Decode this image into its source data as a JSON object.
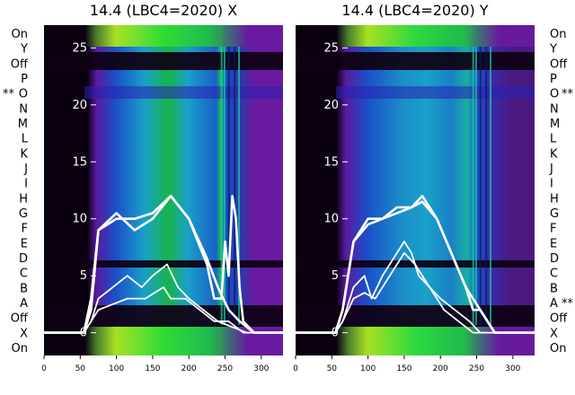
{
  "chart_data": [
    {
      "type": "heatmap",
      "title": "14.4 (LBC4=2020) X",
      "x_range": [
        0,
        330
      ],
      "x_ticks": [
        0,
        50,
        100,
        150,
        200,
        250,
        300
      ],
      "y_range": [
        -2,
        27
      ],
      "y_ticks": [
        0,
        5,
        10,
        15,
        20,
        25
      ],
      "row_labels": [
        "On",
        "Y",
        "Off",
        "P",
        "O",
        "N",
        "M",
        "L",
        "K",
        "J",
        "I",
        "H",
        "G",
        "F",
        "E",
        "D",
        "C",
        "B",
        "A",
        "Off",
        "X",
        "On"
      ],
      "row_markers": [
        {
          "row": "O",
          "marker": "**"
        }
      ],
      "series": [
        {
          "x": [
            0,
            55,
            65,
            75,
            100,
            125,
            150,
            175,
            200,
            225,
            235,
            245,
            250,
            255,
            260,
            265,
            270,
            275,
            290,
            330
          ],
          "y": [
            0,
            0,
            3,
            9,
            10.5,
            9,
            10,
            12,
            10,
            6,
            3,
            3,
            8,
            5,
            12,
            10,
            4,
            1,
            0,
            0
          ]
        },
        {
          "x": [
            0,
            55,
            65,
            75,
            100,
            125,
            150,
            175,
            200,
            225,
            240,
            255,
            270,
            290,
            330
          ],
          "y": [
            0,
            0,
            2,
            9,
            10,
            10,
            10.5,
            12,
            10,
            6.5,
            4,
            2,
            1,
            0,
            0
          ]
        },
        {
          "x": [
            0,
            55,
            65,
            75,
            95,
            115,
            135,
            150,
            170,
            185,
            200,
            220,
            240,
            260,
            280,
            300,
            330
          ],
          "y": [
            0,
            0,
            1,
            3,
            4,
            5,
            4,
            5,
            6,
            4,
            3,
            2,
            1,
            0.5,
            0,
            0,
            0
          ]
        },
        {
          "x": [
            0,
            55,
            65,
            75,
            95,
            115,
            140,
            165,
            175,
            195,
            215,
            235,
            255,
            275,
            300,
            330
          ],
          "y": [
            0,
            0,
            1,
            2,
            2.5,
            3,
            3,
            4,
            3,
            3,
            2,
            1,
            1,
            0,
            0,
            0
          ]
        }
      ]
    },
    {
      "type": "heatmap",
      "title": "14.4 (LBC4=2020) Y",
      "x_range": [
        0,
        330
      ],
      "x_ticks": [
        0,
        50,
        100,
        150,
        200,
        250,
        300
      ],
      "y_range": [
        -2,
        27
      ],
      "y_ticks": [
        0,
        5,
        10,
        15,
        20,
        25
      ],
      "row_labels": [
        "On",
        "Y",
        "Off",
        "P",
        "O",
        "N",
        "M",
        "L",
        "K",
        "J",
        "I",
        "H",
        "G",
        "F",
        "E",
        "D",
        "C",
        "B",
        "A",
        "Off",
        "X",
        "On"
      ],
      "row_markers": [
        {
          "row": "O",
          "marker": "**"
        },
        {
          "row": "A",
          "marker": "**"
        }
      ],
      "series": [
        {
          "x": [
            0,
            55,
            65,
            80,
            100,
            120,
            140,
            160,
            175,
            195,
            215,
            235,
            245,
            255,
            265,
            275,
            285,
            330
          ],
          "y": [
            0,
            0,
            2,
            8,
            10,
            10,
            11,
            11,
            12,
            10,
            7,
            4,
            2,
            2,
            1,
            0,
            0,
            0
          ]
        },
        {
          "x": [
            0,
            55,
            65,
            80,
            100,
            120,
            140,
            160,
            175,
            195,
            215,
            235,
            255,
            275,
            330
          ],
          "y": [
            0,
            0,
            2,
            8,
            9.5,
            10,
            10.5,
            11,
            11.5,
            10,
            7,
            4,
            2,
            0,
            0
          ]
        },
        {
          "x": [
            0,
            55,
            65,
            80,
            95,
            105,
            120,
            140,
            150,
            160,
            170,
            185,
            200,
            220,
            240,
            255,
            330
          ],
          "y": [
            0,
            0,
            1,
            4,
            5,
            3,
            5,
            7,
            8,
            7,
            5,
            4,
            3,
            2,
            1,
            0,
            0
          ]
        },
        {
          "x": [
            0,
            55,
            65,
            80,
            95,
            110,
            130,
            150,
            165,
            185,
            205,
            225,
            245,
            330
          ],
          "y": [
            0,
            0,
            1,
            3,
            3.5,
            3,
            5,
            7,
            6,
            4,
            2,
            1,
            0,
            0
          ]
        }
      ]
    }
  ]
}
